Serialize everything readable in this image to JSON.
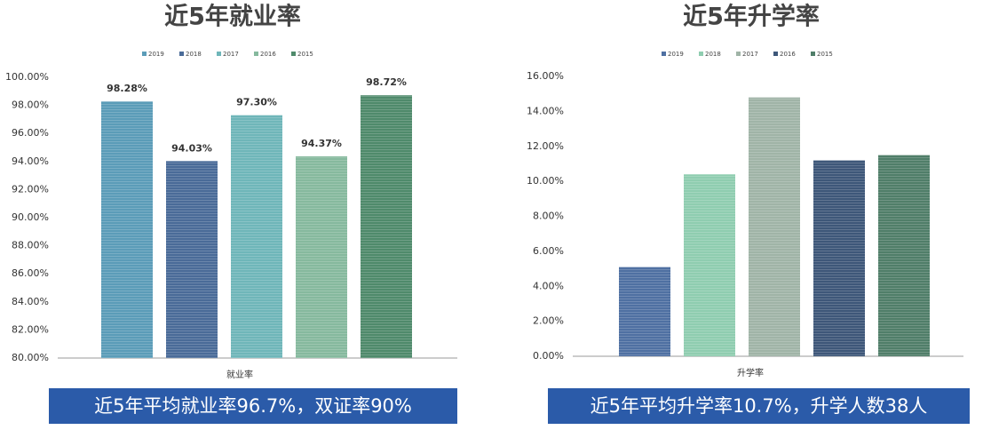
{
  "chart_data": [
    {
      "type": "bar",
      "title": "近5年就业率",
      "categories": [
        "就业率"
      ],
      "series": [
        {
          "name": "2019",
          "color": "#5b9cb8",
          "values": [
            98.28
          ],
          "value_labels": [
            "98.28%"
          ]
        },
        {
          "name": "2018",
          "color": "#4a6b98",
          "values": [
            94.03
          ],
          "value_labels": [
            "94.03%"
          ]
        },
        {
          "name": "2017",
          "color": "#6fb6b9",
          "values": [
            97.3
          ],
          "value_labels": [
            "97.30%"
          ]
        },
        {
          "name": "2016",
          "color": "#86b99e",
          "values": [
            94.37
          ],
          "value_labels": [
            "94.37%"
          ]
        },
        {
          "name": "2015",
          "color": "#4f8a6b",
          "values": [
            98.72
          ],
          "value_labels": [
            "98.72%"
          ]
        }
      ],
      "ylim": [
        80,
        100
      ],
      "yticks": [
        {
          "value": 80,
          "label": "80.00%"
        },
        {
          "value": 82,
          "label": "82.00%"
        },
        {
          "value": 84,
          "label": "84.00%"
        },
        {
          "value": 86,
          "label": "86.00%"
        },
        {
          "value": 88,
          "label": "88.00%"
        },
        {
          "value": 90,
          "label": "90.00%"
        },
        {
          "value": 92,
          "label": "92.00%"
        },
        {
          "value": 94,
          "label": "94.00%"
        },
        {
          "value": 96,
          "label": "96.00%"
        },
        {
          "value": 98,
          "label": "98.00%"
        },
        {
          "value": 100,
          "label": "100.00%"
        }
      ],
      "legend": "top",
      "footnote": "近5年平均就业率96.7%，双证率90%"
    },
    {
      "type": "bar",
      "title": "近5年升学率",
      "categories": [
        "升学率"
      ],
      "series": [
        {
          "name": "2019",
          "color": "#4f70a2",
          "values": [
            5.1
          ]
        },
        {
          "name": "2018",
          "color": "#8fcdb0",
          "values": [
            10.4
          ]
        },
        {
          "name": "2017",
          "color": "#a0b4a7",
          "values": [
            14.8
          ]
        },
        {
          "name": "2016",
          "color": "#3e5779",
          "values": [
            11.2
          ]
        },
        {
          "name": "2015",
          "color": "#507e69",
          "values": [
            11.5
          ]
        }
      ],
      "ylim": [
        0,
        16
      ],
      "yticks": [
        {
          "value": 0,
          "label": "0.00%"
        },
        {
          "value": 2,
          "label": "2.00%"
        },
        {
          "value": 4,
          "label": "4.00%"
        },
        {
          "value": 6,
          "label": "6.00%"
        },
        {
          "value": 8,
          "label": "8.00%"
        },
        {
          "value": 10,
          "label": "10.00%"
        },
        {
          "value": 12,
          "label": "12.00%"
        },
        {
          "value": 14,
          "label": "14.00%"
        },
        {
          "value": 16,
          "label": "16.00%"
        }
      ],
      "legend": "top",
      "footnote": "近5年平均升学率10.7%，升学人数38人"
    }
  ]
}
